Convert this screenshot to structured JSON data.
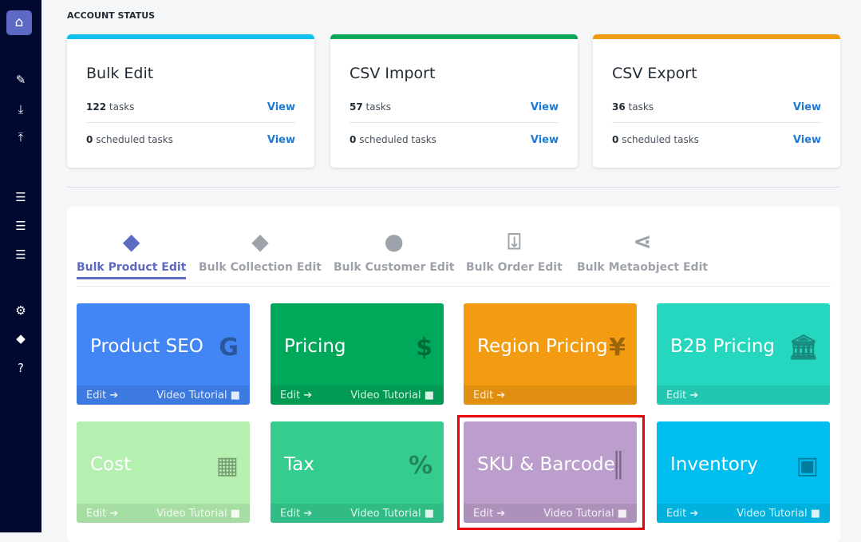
{
  "sidebar": {
    "items": [
      "home-icon",
      "pencil-icon",
      "download-icon",
      "upload-icon",
      "list-edit-icon",
      "list-download-icon",
      "list-upload-icon",
      "gear-icon",
      "tags-icon",
      "help-icon"
    ],
    "help_label": "?"
  },
  "account_status": {
    "title": "ACCOUNT STATUS",
    "cards": [
      {
        "title": "Bulk Edit",
        "tasks": "122",
        "tasks_label": "tasks",
        "scheduled": "0",
        "scheduled_label": "scheduled tasks",
        "view": "View",
        "color": "#12c0f0"
      },
      {
        "title": "CSV Import",
        "tasks": "57",
        "tasks_label": "tasks",
        "scheduled": "0",
        "scheduled_label": "scheduled tasks",
        "view": "View",
        "color": "#0aa85a"
      },
      {
        "title": "CSV Export",
        "tasks": "36",
        "tasks_label": "tasks",
        "scheduled": "0",
        "scheduled_label": "scheduled tasks",
        "view": "View",
        "color": "#f39c12"
      }
    ]
  },
  "tabs": [
    "Bulk Product Edit",
    "Bulk Collection Edit",
    "Bulk Customer Edit",
    "Bulk Order Edit",
    "Bulk Metaobject Edit"
  ],
  "tiles": [
    {
      "title": "Product SEO",
      "edit": "Edit",
      "video": "Video Tutorial",
      "color": "#4285f4"
    },
    {
      "title": "Pricing",
      "edit": "Edit",
      "video": "Video Tutorial",
      "color": "#00a85a"
    },
    {
      "title": "Region Pricing",
      "edit": "Edit",
      "video": "",
      "color": "#f39c12"
    },
    {
      "title": "B2B Pricing",
      "edit": "Edit",
      "video": "",
      "color": "#26d7c0"
    },
    {
      "title": "Cost",
      "edit": "Edit",
      "video": "Video Tutorial",
      "color": "#b5f0b0"
    },
    {
      "title": "Tax",
      "edit": "Edit",
      "video": "Video Tutorial",
      "color": "#35cc90"
    },
    {
      "title": "SKU & Barcode",
      "edit": "Edit",
      "video": "Video Tutorial",
      "color": "#bb9ecb"
    },
    {
      "title": "Inventory",
      "edit": "Edit",
      "video": "Video Tutorial",
      "color": "#00bff0"
    }
  ]
}
